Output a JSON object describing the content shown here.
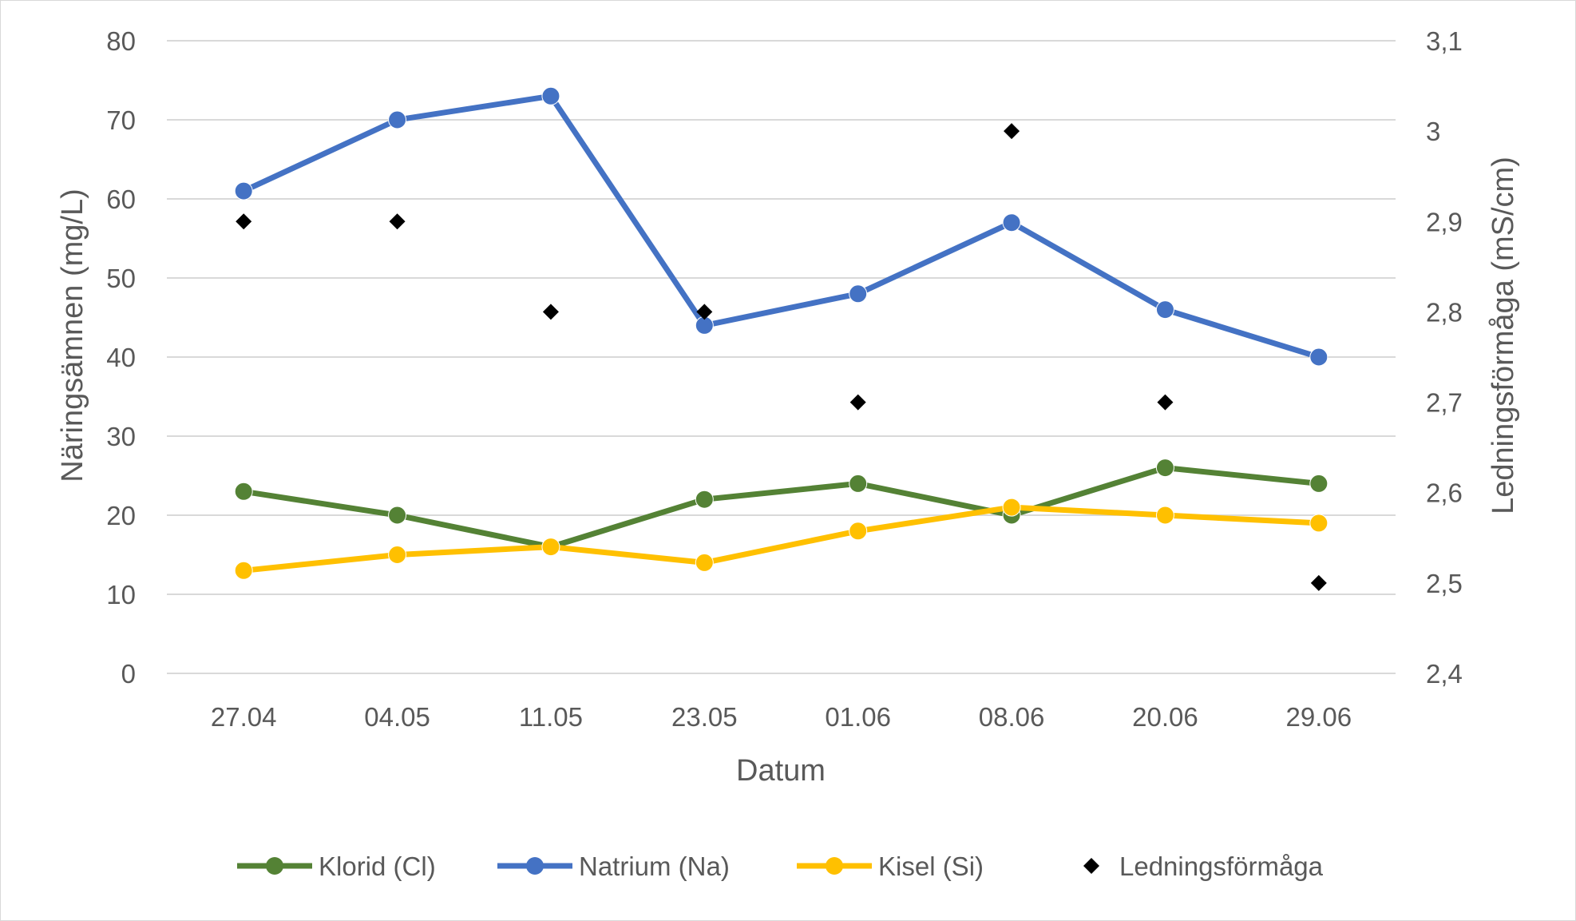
{
  "chart_data": {
    "type": "line",
    "xlabel": "Datum",
    "ylabel": "Näringsämnen (mg/L)",
    "y2label": "Ledningsförmåga (mS/cm)",
    "categories": [
      "27.04",
      "04.05",
      "11.05",
      "23.05",
      "01.06",
      "08.06",
      "20.06",
      "29.06"
    ],
    "ylim": [
      0,
      80
    ],
    "yticks": [
      "0",
      "10",
      "20",
      "30",
      "40",
      "50",
      "60",
      "70",
      "80"
    ],
    "y2lim": [
      2.4,
      3.1
    ],
    "y2ticks": [
      "2,4",
      "2,5",
      "2,6",
      "2,7",
      "2,8",
      "2,9",
      "3",
      "3,1"
    ],
    "grid": true,
    "legend_position": "bottom",
    "series": [
      {
        "name": "Klorid (Cl)",
        "type": "line",
        "axis": "left",
        "color": "#548235",
        "values": [
          23,
          20,
          16,
          22,
          24,
          20,
          26,
          24
        ]
      },
      {
        "name": "Natrium (Na)",
        "type": "line",
        "axis": "left",
        "color": "#4472c4",
        "values": [
          61,
          70,
          73,
          44,
          48,
          57,
          46,
          40
        ]
      },
      {
        "name": "Kisel (Si)",
        "type": "line",
        "axis": "left",
        "color": "#ffc000",
        "values": [
          13,
          15,
          16,
          14,
          18,
          21,
          20,
          19
        ]
      },
      {
        "name": "Ledningsförmåga",
        "type": "scatter",
        "axis": "right",
        "color": "#000000",
        "values": [
          2.9,
          2.9,
          2.8,
          2.8,
          2.7,
          3.0,
          2.7,
          2.5
        ]
      }
    ]
  }
}
